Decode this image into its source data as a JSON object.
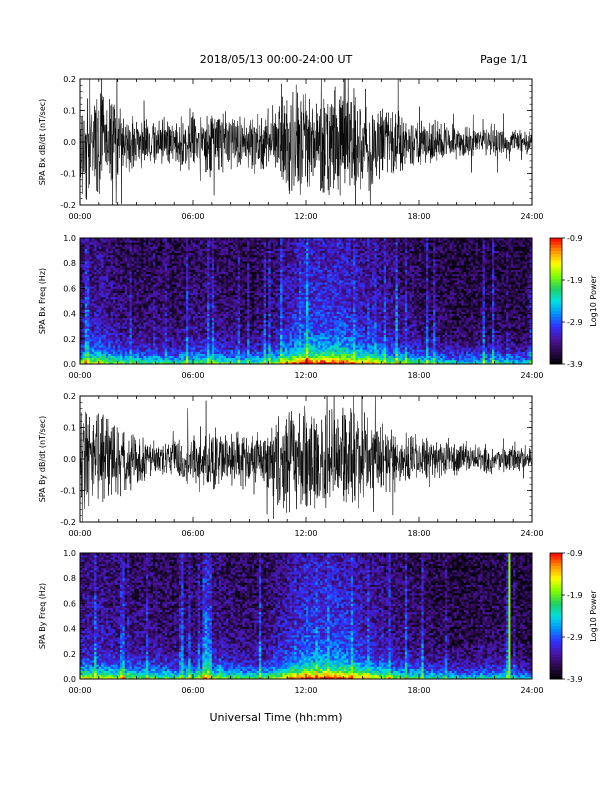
{
  "header": {
    "title": "2018/05/13  00:00-24:00 UT",
    "page": "Page 1/1"
  },
  "xaxis": {
    "label": "Universal Time (hh:mm)",
    "range_hours": [
      0,
      24
    ],
    "tick_labels": [
      "00:00",
      "06:00",
      "12:00",
      "18:00",
      "24:00"
    ]
  },
  "colors": {
    "trace": "#000000",
    "colormap": [
      "#000000",
      "#2a0a4a",
      "#4a14a0",
      "#3030ff",
      "#0090ff",
      "#00e0e0",
      "#20d060",
      "#80ff00",
      "#ffff00",
      "#ff9000",
      "#ff0000"
    ]
  },
  "chart_data": [
    {
      "type": "line",
      "ylabel": "SPA Bx dB/dt (nT/sec)",
      "ylim": [
        -0.2,
        0.2
      ],
      "y_tick_labels": [
        "-0.2",
        "-0.1",
        "0.0",
        "0.1",
        "0.2"
      ],
      "series": [
        {
          "x_hours": [
            0,
            1,
            2,
            3,
            4,
            5,
            6,
            7,
            8,
            9,
            10,
            11,
            12,
            13,
            14,
            15,
            16,
            17,
            18,
            19,
            20,
            21,
            22,
            23,
            24
          ],
          "amplitude": [
            0.2,
            0.2,
            0.15,
            0.1,
            0.08,
            0.09,
            0.12,
            0.12,
            0.1,
            0.1,
            0.12,
            0.2,
            0.2,
            0.2,
            0.2,
            0.18,
            0.15,
            0.1,
            0.09,
            0.07,
            0.06,
            0.05,
            0.06,
            0.05,
            0.04
          ]
        }
      ]
    },
    {
      "type": "heatmap",
      "ylabel": "SPA Bx Freq (Hz)",
      "ylim": [
        0.0,
        1.0
      ],
      "y_tick_labels": [
        "0.0",
        "0.2",
        "0.4",
        "0.6",
        "0.8",
        "1.0"
      ],
      "colorbar": {
        "label": "Log10 Power",
        "range": [
          -3.9,
          -0.9
        ],
        "tick_labels": [
          "-0.9",
          "-1.9",
          "-2.9",
          "-3.9"
        ]
      },
      "activity_hours": [
        0,
        1,
        2,
        3,
        4,
        5,
        6,
        7,
        8,
        9,
        10,
        11,
        12,
        13,
        14,
        15,
        16,
        17,
        18,
        19,
        20,
        21,
        22,
        23,
        24
      ],
      "activity": [
        0.45,
        0.55,
        0.4,
        0.35,
        0.35,
        0.3,
        0.4,
        0.4,
        0.35,
        0.3,
        0.35,
        0.6,
        0.75,
        0.75,
        0.75,
        0.6,
        0.5,
        0.4,
        0.35,
        0.3,
        0.25,
        0.25,
        0.3,
        0.25,
        0.2
      ],
      "highlight_lines_hours": []
    },
    {
      "type": "line",
      "ylabel": "SPA By dB/dt (nT/sec)",
      "ylim": [
        -0.2,
        0.2
      ],
      "y_tick_labels": [
        "-0.2",
        "-0.1",
        "0.0",
        "0.1",
        "0.2"
      ],
      "series": [
        {
          "x_hours": [
            0,
            1,
            2,
            3,
            4,
            5,
            6,
            7,
            8,
            9,
            10,
            11,
            12,
            13,
            14,
            15,
            16,
            17,
            18,
            19,
            20,
            21,
            22,
            23,
            24
          ],
          "amplitude": [
            0.2,
            0.18,
            0.14,
            0.09,
            0.06,
            0.07,
            0.1,
            0.12,
            0.1,
            0.09,
            0.12,
            0.2,
            0.2,
            0.2,
            0.2,
            0.18,
            0.14,
            0.1,
            0.08,
            0.07,
            0.06,
            0.05,
            0.05,
            0.05,
            0.04
          ]
        }
      ]
    },
    {
      "type": "heatmap",
      "ylabel": "SPA By Freq (Hz)",
      "ylim": [
        0.0,
        1.0
      ],
      "y_tick_labels": [
        "0.0",
        "0.2",
        "0.4",
        "0.6",
        "0.8",
        "1.0"
      ],
      "colorbar": {
        "label": "Log10 Power",
        "range": [
          -3.9,
          -0.9
        ],
        "tick_labels": [
          "-0.9",
          "-1.9",
          "-2.9",
          "-3.9"
        ]
      },
      "activity_hours": [
        0,
        1,
        2,
        3,
        4,
        5,
        6,
        7,
        8,
        9,
        10,
        11,
        12,
        13,
        14,
        15,
        16,
        17,
        18,
        19,
        20,
        21,
        22,
        23,
        24
      ],
      "activity": [
        0.5,
        0.5,
        0.45,
        0.4,
        0.4,
        0.35,
        0.4,
        0.45,
        0.4,
        0.35,
        0.4,
        0.6,
        0.75,
        0.75,
        0.75,
        0.6,
        0.5,
        0.4,
        0.35,
        0.3,
        0.25,
        0.25,
        0.3,
        0.25,
        0.2
      ],
      "highlight_lines_hours": [
        22.8
      ]
    }
  ]
}
